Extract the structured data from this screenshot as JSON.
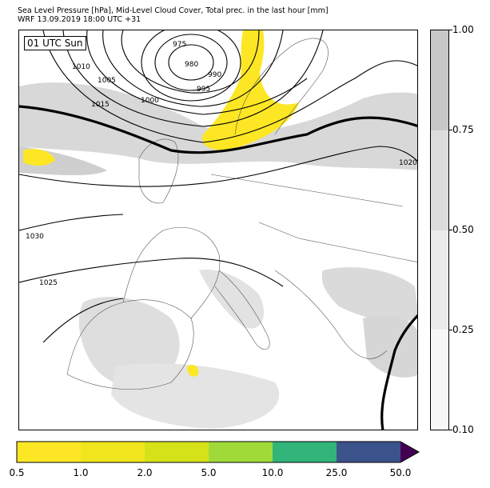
{
  "header": {
    "line1": "Sea Level Pressure [hPa], Mid-Level Cloud Cover, Total prec. in the last hour [mm]",
    "line2": "WRF 13.09.2019 18:00 UTC +31"
  },
  "map": {
    "time_label": "01 UTC Sun",
    "isobars": [
      "975",
      "980",
      "985",
      "990",
      "995",
      "1000",
      "1005",
      "1010",
      "1015",
      "1020",
      "1025",
      "1030"
    ],
    "colors": {
      "land_border": "#555555",
      "isobar": "#000000",
      "cloud_light": "#e6e6e6",
      "cloud_mid": "#cccccc",
      "precip_yellow": "#fde725"
    }
  },
  "cloud_colorbar": {
    "ticks": [
      "1.00",
      "0.75",
      "0.50",
      "0.25",
      "0.10"
    ],
    "colors": [
      "#c8c8c8",
      "#dcdcdc",
      "#ebebeb",
      "#f7f7f7"
    ]
  },
  "precip_colorbar": {
    "ticks": [
      "0.5",
      "1.0",
      "2.0",
      "5.0",
      "10.0",
      "25.0",
      "50.0"
    ],
    "colors": [
      "#fde725",
      "#f1e51d",
      "#d5e21a",
      "#a0da39",
      "#31b57b",
      "#3b528b",
      "#440154"
    ]
  }
}
